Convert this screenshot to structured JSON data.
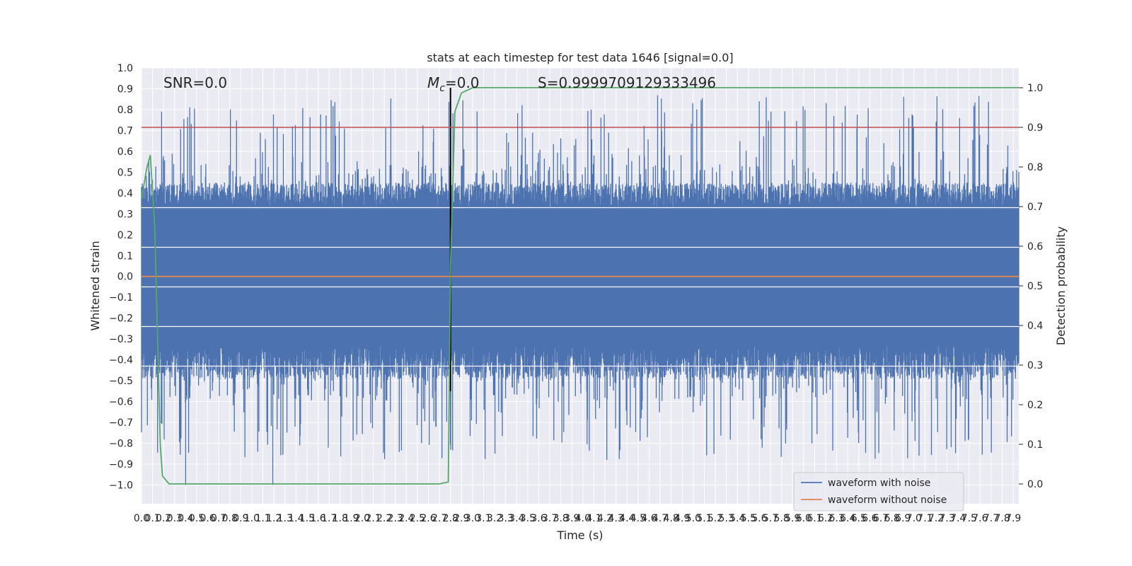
{
  "chart_data": {
    "type": "line",
    "title": "stats at each timestep for test data 1646 [signal=0.0]",
    "xlabel": "Time (s)",
    "ylabel": "Whitened strain",
    "y2label": "Detection probability",
    "xlim": [
      0,
      7.95
    ],
    "ylim": [
      -1.09,
      1.0
    ],
    "y2lim": [
      -0.05,
      1.05
    ],
    "x_tick_labels": [
      "0.0",
      "0.1",
      "0.2",
      "0.3",
      "0.4",
      "0.5",
      "0.6",
      "0.7",
      "0.8",
      "0.9",
      "1.0",
      "1.1",
      "1.2",
      "1.3",
      "1.4",
      "1.5",
      "1.6",
      "1.7",
      "1.8",
      "1.9",
      "2.0",
      "2.1",
      "2.2",
      "2.3",
      "2.4",
      "2.5",
      "2.6",
      "2.7",
      "2.8",
      "2.9",
      "3.0",
      "3.1",
      "3.2",
      "3.3",
      "3.4",
      "3.5",
      "3.6",
      "3.7",
      "3.8",
      "3.9",
      "4.0",
      "4.1",
      "4.2",
      "4.3",
      "4.4",
      "4.5",
      "4.6",
      "4.7",
      "4.8",
      "4.9",
      "5.0",
      "5.1",
      "5.2",
      "5.3",
      "5.4",
      "5.5",
      "5.6",
      "5.7",
      "5.8",
      "5.9",
      "6.0",
      "6.1",
      "6.2",
      "6.3",
      "6.4",
      "6.5",
      "6.6",
      "6.7",
      "6.8",
      "6.9",
      "7.0",
      "7.1",
      "7.2",
      "7.3",
      "7.4",
      "7.5",
      "7.6",
      "7.7",
      "7.8",
      "7.9"
    ],
    "y_tick_labels": [
      "1.0",
      "0.9",
      "0.8",
      "0.7",
      "0.6",
      "0.5",
      "0.4",
      "0.3",
      "0.2",
      "0.1",
      "0.0",
      "−0.1",
      "−0.2",
      "−0.3",
      "−0.4",
      "−0.5",
      "−0.6",
      "−0.7",
      "−0.8",
      "−0.9",
      "−1.0"
    ],
    "y2_tick_labels": [
      "1.0",
      "0.9",
      "0.8",
      "0.7",
      "0.6",
      "0.5",
      "0.4",
      "0.3",
      "0.2",
      "0.1",
      "0.0"
    ],
    "annotations": {
      "snr": "SNR=0.0",
      "mc_symbol": "M",
      "mc_sub": "c",
      "mc_value": "=0.0",
      "s": "S=0.9999709129333496"
    },
    "event_time": 2.8,
    "threshold": 0.9,
    "grid": true,
    "legend_position": "lower-right",
    "series": [
      {
        "name": "waveform with noise",
        "color": "#4c72b0",
        "kind": "noise",
        "envelope": 0.33,
        "peak_max": 0.87,
        "trough_min": -1.0
      },
      {
        "name": "waveform without noise",
        "color": "#dd8452",
        "values": [
          [
            0.0,
            0.0
          ],
          [
            7.95,
            0.0
          ]
        ]
      },
      {
        "name": "",
        "color": "#55a868",
        "axis": "right",
        "values": [
          [
            0.0,
            0.72
          ],
          [
            0.05,
            0.8
          ],
          [
            0.08,
            0.83
          ],
          [
            0.12,
            0.65
          ],
          [
            0.17,
            0.1
          ],
          [
            0.19,
            0.02
          ],
          [
            0.25,
            0.0
          ],
          [
            2.7,
            0.0
          ],
          [
            2.78,
            0.005
          ],
          [
            2.8,
            0.55
          ],
          [
            2.84,
            0.94
          ],
          [
            2.9,
            0.987
          ],
          [
            3.0,
            1.0
          ],
          [
            7.95,
            1.0
          ]
        ]
      },
      {
        "name": "",
        "color": "#c44e52",
        "axis": "right",
        "values": [
          [
            0.0,
            0.9
          ],
          [
            7.95,
            0.9
          ]
        ]
      }
    ]
  }
}
